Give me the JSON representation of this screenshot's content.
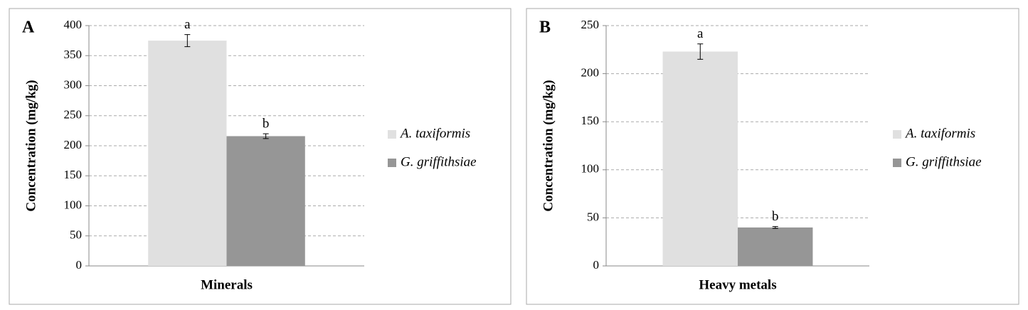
{
  "chart_data": [
    {
      "type": "bar",
      "panel": "A",
      "y_label": "Concentration (mg/kg)",
      "categories": [
        "Minerals"
      ],
      "series": [
        {
          "name": "A. taxiformis",
          "color": "#e0e0e0",
          "values": [
            375
          ],
          "errors": [
            10
          ],
          "letters": [
            "a"
          ]
        },
        {
          "name": "G. griffithsiae",
          "color": "#969696",
          "values": [
            216
          ],
          "errors": [
            4
          ],
          "letters": [
            "b"
          ]
        }
      ],
      "ylim": [
        0,
        400
      ],
      "yticks": [
        0,
        50,
        100,
        150,
        200,
        250,
        300,
        350,
        400
      ],
      "grid": true,
      "legend": "right"
    },
    {
      "type": "bar",
      "panel": "B",
      "y_label": "Concentration (mg/kg)",
      "categories": [
        "Heavy metals"
      ],
      "series": [
        {
          "name": "A. taxiformis",
          "color": "#e0e0e0",
          "values": [
            223
          ],
          "errors": [
            8
          ],
          "letters": [
            "a"
          ]
        },
        {
          "name": "G. griffithsiae",
          "color": "#969696",
          "values": [
            40
          ],
          "errors": [
            1
          ],
          "letters": [
            "b"
          ]
        }
      ],
      "ylim": [
        0,
        250
      ],
      "yticks": [
        0,
        50,
        100,
        150,
        200,
        250
      ],
      "grid": true,
      "legend": "right"
    }
  ]
}
